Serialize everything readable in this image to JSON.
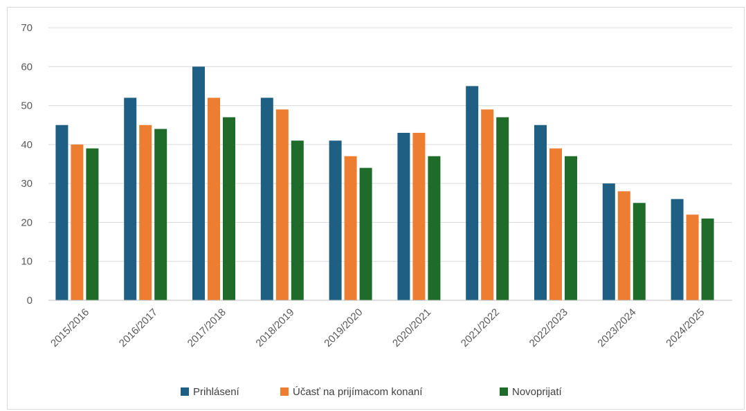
{
  "chart_data": {
    "type": "bar",
    "categories": [
      "2015/2016",
      "2016/2017",
      "2017/2018",
      "2018/2019",
      "2019/2020",
      "2020/2021",
      "2021/2022",
      "2022/2023",
      "2023/2024",
      "2024/2025"
    ],
    "series": [
      {
        "name": "Prihlásení",
        "color": "#1f5f84",
        "values": [
          45,
          52,
          60,
          52,
          41,
          43,
          55,
          45,
          30,
          26
        ]
      },
      {
        "name": "Účasť na prijímacom konaní",
        "color": "#ed7d31",
        "values": [
          40,
          45,
          52,
          49,
          37,
          43,
          49,
          39,
          28,
          22
        ]
      },
      {
        "name": "Novoprijatí",
        "color": "#1e6b2a",
        "values": [
          39,
          44,
          47,
          41,
          34,
          37,
          47,
          37,
          25,
          21
        ]
      }
    ],
    "yticks": [
      "0",
      "10",
      "20",
      "30",
      "40",
      "50",
      "60",
      "70"
    ],
    "ylim": [
      0,
      70
    ],
    "grid": true,
    "legend": "bottom"
  }
}
